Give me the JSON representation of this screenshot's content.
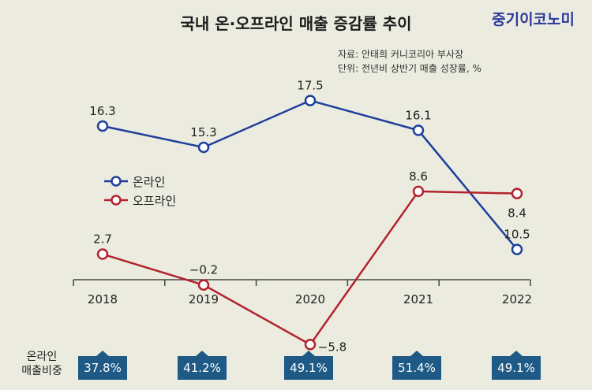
{
  "header": {
    "title": "국내 온·오프라인 매출 증감률 추이",
    "brand": "중기이코노미"
  },
  "source": {
    "line1": "자료: 안태희 커니코리아 부사장",
    "line2": "단위: 전년비 상반기 매출 성장률, %"
  },
  "share": {
    "label_line1": "온라인",
    "label_line2": "매출비중",
    "values": [
      "37.8%",
      "41.2%",
      "49.1%",
      "51.4%",
      "49.1%"
    ]
  },
  "colors": {
    "online": "#1f3f9c",
    "offline": "#b3232f",
    "badge": "#1f5a86",
    "background": "#ebecdf"
  },
  "chart_data": {
    "type": "line",
    "title": "국내 온·오프라인 매출 증감률 추이",
    "categories": [
      "2018",
      "2019",
      "2020",
      "2021",
      "2022"
    ],
    "series": [
      {
        "name": "온라인",
        "values": [
          16.3,
          15.3,
          17.5,
          16.1,
          10.5
        ],
        "labels": [
          "16.3",
          "15.3",
          "17.5",
          "16.1",
          "10.5"
        ]
      },
      {
        "name": "오프라인",
        "values": [
          2.7,
          -0.2,
          -5.8,
          8.6,
          8.4
        ],
        "labels": [
          "2.7",
          "−0.2",
          "−5.8",
          "8.6",
          "8.4"
        ]
      }
    ],
    "legend_position": "center-left",
    "grid": false
  }
}
